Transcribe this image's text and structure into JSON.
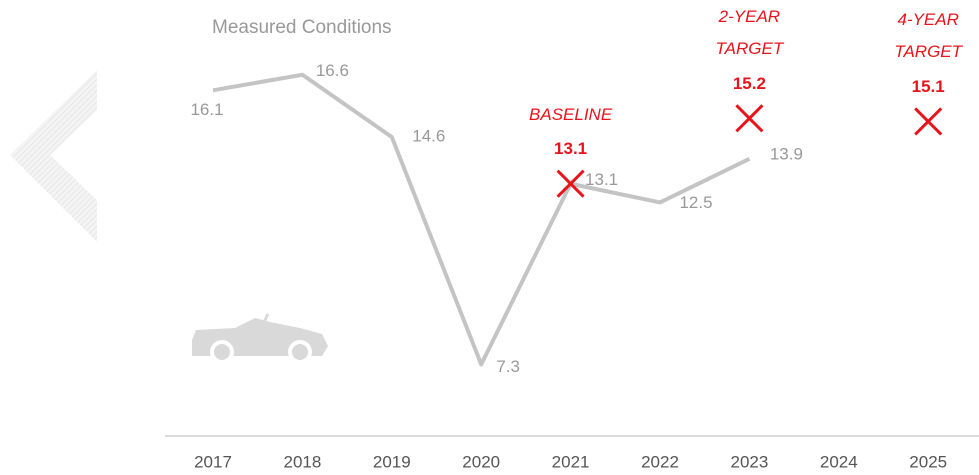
{
  "chart_data": {
    "type": "line",
    "title": "Measured Conditions",
    "categories": [
      "2017",
      "2018",
      "2019",
      "2020",
      "2021",
      "2022",
      "2023",
      "2024",
      "2025"
    ],
    "values": [
      16.1,
      16.6,
      14.6,
      7.3,
      13.1,
      12.5,
      13.9,
      null,
      null
    ],
    "color": "#c4c4c4",
    "ylim": [
      5,
      19
    ],
    "annotations": [
      {
        "category": "2021",
        "label": "BASELINE",
        "value": 13.1,
        "color": "#e8141b"
      },
      {
        "category": "2023",
        "label": "2-YEAR TARGET",
        "value": 15.2,
        "color": "#e8141b"
      },
      {
        "category": "2025",
        "label": "4-YEAR TARGET",
        "value": 15.1,
        "color": "#e8141b"
      }
    ]
  }
}
